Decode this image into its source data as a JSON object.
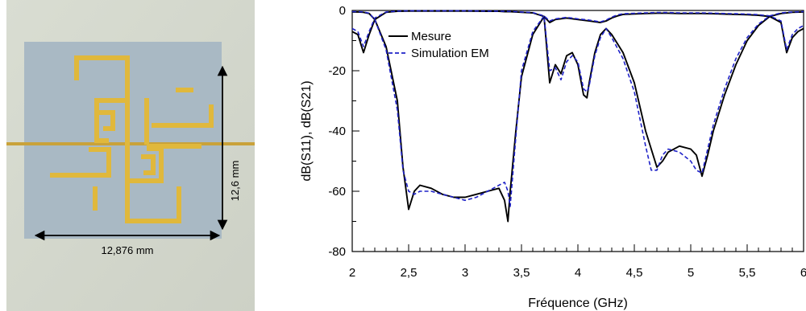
{
  "photo": {
    "width_dimension_label": "12,876 mm",
    "height_dimension_label": "12,6 mm"
  },
  "chart_data": {
    "type": "line",
    "xlabel": "Fréquence (GHz)",
    "ylabel": "dB(S11), dB(S21)",
    "xlim": [
      2,
      6
    ],
    "ylim": [
      -80,
      0
    ],
    "x_ticks": [
      2,
      2.5,
      3,
      3.5,
      4,
      4.5,
      5,
      5.5,
      6
    ],
    "x_tick_labels": [
      "2",
      "2,5",
      "3",
      "3,5",
      "4",
      "4,5",
      "5",
      "5,5",
      "6"
    ],
    "y_ticks": [
      0,
      -20,
      -40,
      -60,
      -80
    ],
    "y_tick_labels": [
      "0",
      "-20",
      "-40",
      "-60",
      "-80"
    ],
    "grid": false,
    "legend_position": "top-left",
    "series": [
      {
        "name": "Mesure",
        "color": "#000000",
        "style": "solid",
        "curves": [
          {
            "x": [
              2.0,
              2.05,
              2.1,
              2.15,
              2.2,
              2.3,
              2.4,
              2.5,
              2.6,
              2.8,
              3.0,
              3.2,
              3.3,
              3.35,
              3.4,
              3.45,
              3.5,
              3.6,
              3.7,
              3.75,
              3.8,
              3.9,
              4.0,
              4.1,
              4.2,
              4.25,
              4.3,
              4.35,
              4.4,
              4.6,
              4.7,
              4.8,
              4.9,
              5.0,
              5.1,
              5.2,
              5.3,
              5.4,
              5.5,
              5.6,
              5.7,
              5.8,
              5.85,
              5.9,
              5.95,
              6.0
            ],
            "y": [
              -7,
              -8,
              -14,
              -8,
              -3,
              -0.6,
              -0.3,
              -0.2,
              -0.2,
              -0.2,
              -0.2,
              -0.3,
              -0.3,
              -0.4,
              -0.4,
              -0.5,
              -0.6,
              -0.8,
              -2,
              -4,
              -3,
              -2.5,
              -3,
              -3.5,
              -4,
              -3.5,
              -2.5,
              -1.8,
              -1.3,
              -1,
              -0.9,
              -0.9,
              -1,
              -1,
              -1,
              -1.1,
              -1.2,
              -1.3,
              -1.4,
              -1.6,
              -2,
              -4,
              -14,
              -9,
              -7,
              -6
            ]
          },
          {
            "x": [
              2.0,
              2.05,
              2.1,
              2.15,
              2.2,
              2.3,
              2.4,
              2.45,
              2.5,
              2.55,
              2.6,
              2.7,
              2.8,
              2.9,
              3.0,
              3.1,
              3.2,
              3.3,
              3.35,
              3.38,
              3.4,
              3.45,
              3.5,
              3.6,
              3.7,
              3.75,
              3.8,
              3.85,
              3.9,
              3.95,
              4.0,
              4.05,
              4.08,
              4.1,
              4.15,
              4.2,
              4.25,
              4.3,
              4.4,
              4.5,
              4.6,
              4.7,
              4.75,
              4.8,
              4.9,
              5.0,
              5.05,
              5.1,
              5.15,
              5.2,
              5.3,
              5.4,
              5.5,
              5.6,
              5.7,
              5.8,
              5.9,
              6.0
            ],
            "y": [
              -0.5,
              -0.5,
              -0.6,
              -1,
              -3,
              -12,
              -30,
              -52,
              -66,
              -60,
              -58,
              -59,
              -61,
              -62,
              -62,
              -61,
              -60,
              -59,
              -63,
              -70,
              -60,
              -40,
              -22,
              -8,
              -2,
              -24,
              -18,
              -21,
              -15,
              -14,
              -18,
              -28,
              -29,
              -24,
              -14,
              -8,
              -6,
              -8,
              -14,
              -24,
              -40,
              -52,
              -50,
              -47,
              -45,
              -46,
              -48,
              -55,
              -48,
              -40,
              -28,
              -18,
              -10,
              -5,
              -2,
              -1,
              -0.6,
              -0.5
            ]
          }
        ]
      },
      {
        "name": "Simulation EM",
        "color": "#1f22c8",
        "style": "dashed",
        "curves": [
          {
            "x": [
              2.0,
              2.05,
              2.1,
              2.15,
              2.2,
              2.3,
              2.4,
              2.5,
              2.6,
              2.8,
              3.0,
              3.2,
              3.3,
              3.35,
              3.4,
              3.45,
              3.5,
              3.6,
              3.7,
              3.75,
              3.8,
              3.9,
              4.0,
              4.1,
              4.2,
              4.25,
              4.3,
              4.35,
              4.4,
              4.6,
              4.7,
              4.8,
              4.9,
              5.0,
              5.1,
              5.2,
              5.3,
              5.4,
              5.5,
              5.6,
              5.7,
              5.8,
              5.85,
              5.9,
              5.95,
              6.0
            ],
            "y": [
              -6,
              -7,
              -12,
              -7,
              -2.5,
              -0.5,
              -0.2,
              -0.1,
              -0.1,
              -0.1,
              -0.1,
              -0.2,
              -0.2,
              -0.3,
              -0.3,
              -0.4,
              -0.5,
              -0.7,
              -1.8,
              -3.5,
              -2.8,
              -2.3,
              -2.8,
              -3.2,
              -3.8,
              -3.2,
              -2.2,
              -1.5,
              -1.1,
              -0.8,
              -0.7,
              -0.7,
              -0.8,
              -0.8,
              -0.8,
              -0.9,
              -1,
              -1.1,
              -1.2,
              -1.4,
              -1.8,
              -3.5,
              -13,
              -8,
              -6,
              -5
            ]
          },
          {
            "x": [
              2.0,
              2.05,
              2.1,
              2.15,
              2.2,
              2.3,
              2.4,
              2.45,
              2.5,
              2.55,
              2.6,
              2.7,
              2.8,
              2.9,
              3.0,
              3.1,
              3.2,
              3.3,
              3.35,
              3.38,
              3.4,
              3.45,
              3.5,
              3.6,
              3.7,
              3.75,
              3.8,
              3.85,
              3.9,
              3.95,
              4.0,
              4.05,
              4.08,
              4.1,
              4.15,
              4.2,
              4.25,
              4.3,
              4.4,
              4.5,
              4.6,
              4.65,
              4.7,
              4.75,
              4.8,
              4.9,
              5.0,
              5.05,
              5.1,
              5.15,
              5.2,
              5.3,
              5.4,
              5.5,
              5.6,
              5.7,
              5.8,
              5.9,
              6.0
            ],
            "y": [
              -0.4,
              -0.4,
              -0.5,
              -0.9,
              -3,
              -13,
              -33,
              -53,
              -60,
              -61,
              -60,
              -60,
              -61,
              -62,
              -63,
              -62,
              -60,
              -58,
              -57,
              -60,
              -65,
              -42,
              -20,
              -7,
              -1.8,
              -20,
              -19,
              -23,
              -17,
              -15,
              -17,
              -26,
              -27,
              -25,
              -15,
              -9,
              -6,
              -9,
              -16,
              -27,
              -45,
              -53,
              -53,
              -48,
              -46,
              -47,
              -50,
              -53,
              -54,
              -46,
              -38,
              -26,
              -16,
              -9,
              -4.5,
              -1.8,
              -0.8,
              -0.5,
              -0.4
            ]
          }
        ]
      }
    ]
  }
}
